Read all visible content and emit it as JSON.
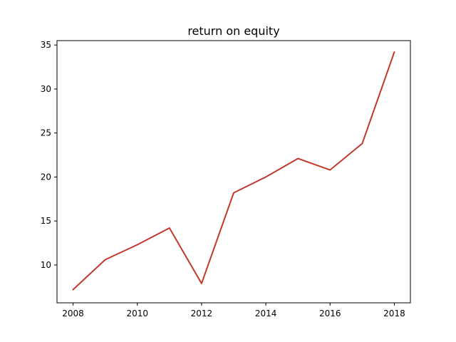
{
  "chart_data": {
    "type": "line",
    "title": "return on equity",
    "xlabel": "",
    "ylabel": "",
    "x": [
      2008,
      2009,
      2010,
      2011,
      2012,
      2013,
      2014,
      2015,
      2016,
      2017,
      2018
    ],
    "series": [
      {
        "values": [
          7.2,
          10.6,
          12.3,
          14.2,
          7.9,
          18.2,
          20.0,
          22.1,
          20.8,
          23.8,
          34.2
        ],
        "color": "#c0392b"
      }
    ],
    "xlim": [
      2007.5,
      2018.5
    ],
    "ylim": [
      5.7,
      35.5
    ],
    "xticks": [
      "2008",
      "2010",
      "2012",
      "2014",
      "2016",
      "2018"
    ],
    "yticks": [
      "10",
      "15",
      "20",
      "25",
      "30",
      "35"
    ],
    "grid": false,
    "legend": "none"
  }
}
